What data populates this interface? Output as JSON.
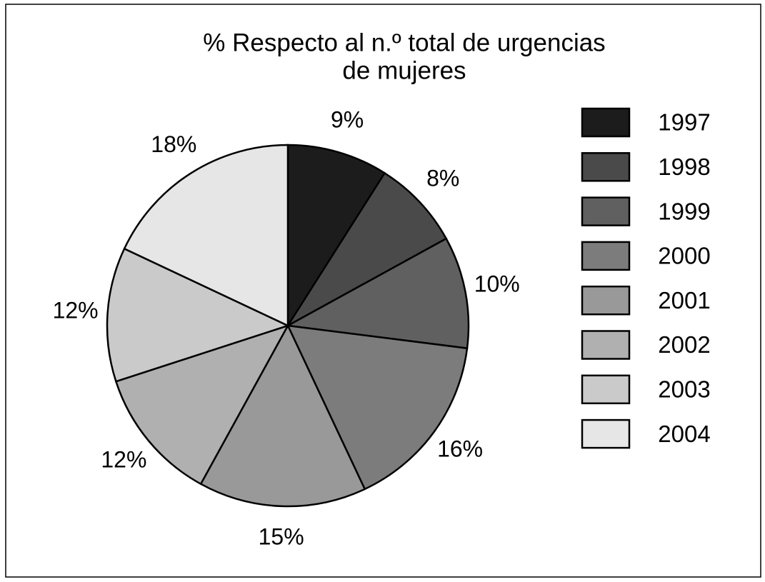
{
  "chart_data": {
    "type": "pie",
    "title": [
      "% Respecto al n.º total de urgencias",
      "de mujeres"
    ],
    "categories": [
      "1997",
      "1998",
      "1999",
      "2000",
      "2001",
      "2002",
      "2003",
      "2004"
    ],
    "values": [
      9,
      8,
      10,
      16,
      15,
      12,
      12,
      18
    ],
    "value_labels": [
      "9%",
      "8%",
      "10%",
      "16%",
      "15%",
      "12%",
      "12%",
      "18%"
    ],
    "colors": [
      "#1c1c1c",
      "#4a4a4a",
      "#606060",
      "#7c7c7c",
      "#999999",
      "#b0b0b0",
      "#cacaca",
      "#e6e6e6"
    ],
    "legend": "right"
  }
}
